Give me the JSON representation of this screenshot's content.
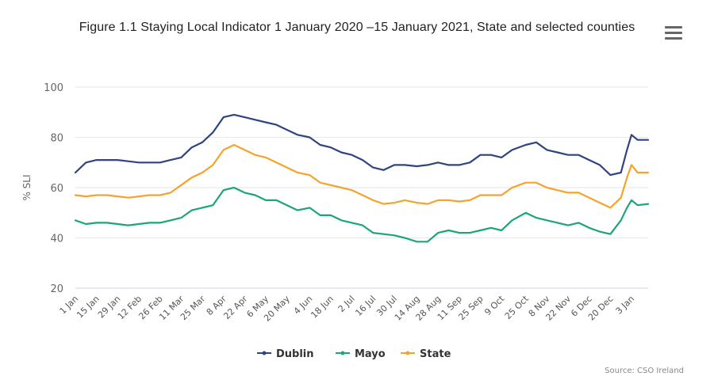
{
  "chart_data": {
    "type": "line",
    "title": "Figure 1.1 Staying Local Indicator 1 January 2020 –15 January 2021, State and selected counties",
    "ylabel": "% SLI",
    "xlabel": "",
    "ylim": [
      20,
      100
    ],
    "yticks": [
      20,
      40,
      60,
      80,
      100
    ],
    "grid": true,
    "legend_position": "bottom-center",
    "source": "Source: CSO Ireland",
    "xtick_labels": [
      "1 Jan",
      "15 Jan",
      "29 Jan",
      "12 Feb",
      "26 Feb",
      "11 Mar",
      "25 Mar",
      "8 Apr",
      "22 Apr",
      "6 May",
      "20 May",
      "4 Jun",
      "18 Jun",
      "2 Jul",
      "16 Jul",
      "30 Jul",
      "14 Aug",
      "28 Aug",
      "11 Sep",
      "25 Sep",
      "9 Oct",
      "25 Oct",
      "8 Nov",
      "22 Nov",
      "6 Dec",
      "20 Dec",
      "3 Jan"
    ],
    "xtick_days": [
      0,
      14,
      28,
      42,
      56,
      70,
      84,
      98,
      112,
      126,
      140,
      155,
      169,
      183,
      197,
      211,
      226,
      240,
      254,
      268,
      282,
      298,
      312,
      326,
      340,
      354,
      368
    ],
    "x_days": [
      0,
      7,
      14,
      21,
      28,
      35,
      42,
      49,
      56,
      63,
      70,
      77,
      84,
      91,
      98,
      105,
      112,
      119,
      126,
      133,
      140,
      147,
      155,
      162,
      169,
      176,
      183,
      190,
      197,
      204,
      211,
      218,
      226,
      233,
      240,
      247,
      254,
      261,
      268,
      275,
      282,
      289,
      298,
      305,
      312,
      319,
      326,
      333,
      340,
      347,
      354,
      361,
      365,
      368,
      372,
      379
    ],
    "series": [
      {
        "name": "Dublin",
        "color": "#2f4480",
        "values": [
          66,
          70,
          71,
          71,
          71,
          70.5,
          70,
          70,
          70,
          71,
          72,
          76,
          78,
          82,
          88,
          89,
          88,
          87,
          86,
          85,
          83,
          81,
          80,
          77,
          76,
          74,
          73,
          71,
          68,
          67,
          69,
          69,
          68.5,
          69,
          70,
          69,
          69,
          70,
          73,
          73,
          72,
          75,
          77,
          78,
          75,
          74,
          73,
          73,
          71,
          69,
          65,
          66,
          75,
          81,
          79,
          79
        ]
      },
      {
        "name": "Mayo",
        "color": "#1aa57b",
        "values": [
          47,
          45.5,
          46,
          46,
          45.5,
          45,
          45.5,
          46,
          46,
          47,
          48,
          51,
          52,
          53,
          59,
          60,
          58,
          57,
          55,
          55,
          53,
          51,
          52,
          49,
          49,
          47,
          46,
          45,
          42,
          41.5,
          41,
          40,
          38.5,
          38.5,
          42,
          43,
          42,
          42,
          43,
          44,
          43,
          47,
          50,
          48,
          47,
          46,
          45,
          46,
          44,
          42.5,
          41.5,
          47,
          52,
          55,
          53,
          53.5
        ]
      },
      {
        "name": "State",
        "color": "#f6a32c",
        "values": [
          57,
          56.5,
          57,
          57,
          56.5,
          56,
          56.5,
          57,
          57,
          58,
          61,
          64,
          66,
          69,
          75,
          77,
          75,
          73,
          72,
          70,
          68,
          66,
          65,
          62,
          61,
          60,
          59,
          57,
          55,
          53.5,
          54,
          55,
          54,
          53.5,
          55,
          55,
          54.5,
          55,
          57,
          57,
          57,
          60,
          62,
          62,
          60,
          59,
          58,
          58,
          56,
          54,
          52,
          56,
          64,
          69,
          66,
          66
        ]
      }
    ]
  },
  "menu_icon": "hamburger-menu-icon"
}
